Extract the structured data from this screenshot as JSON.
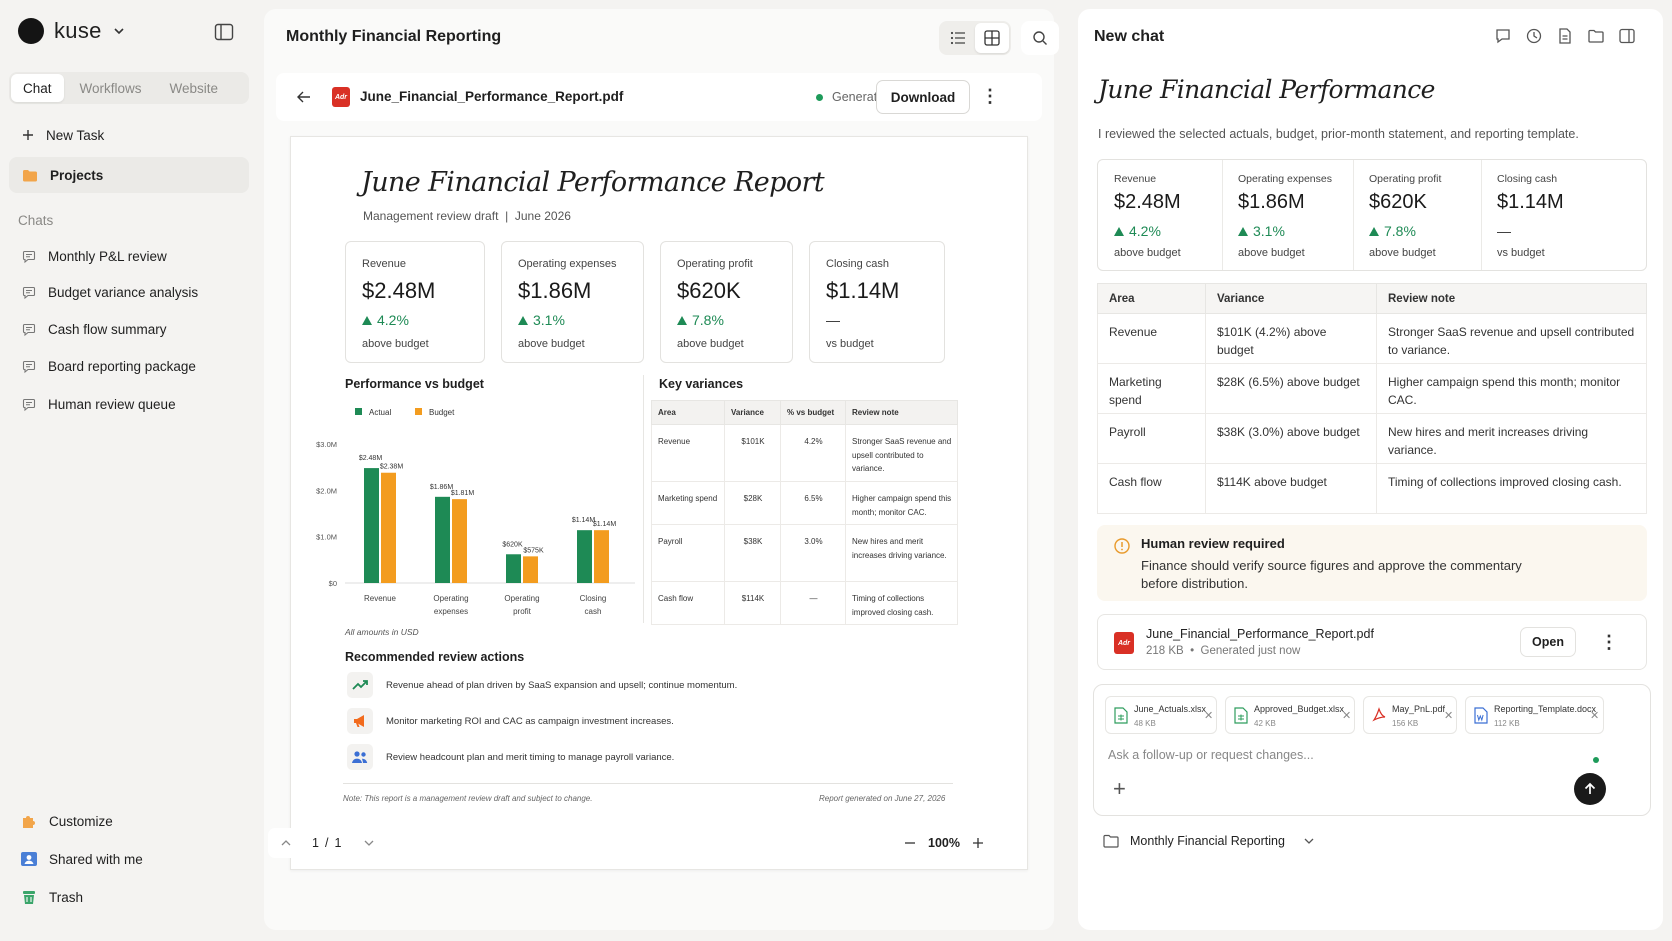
{
  "sidebar": {
    "brand": "kuse",
    "modes": [
      "Chat",
      "Workflows",
      "Website"
    ],
    "new_task": "New Task",
    "projects": "Projects",
    "chats_heading": "Chats",
    "chats": [
      "Monthly P&L review",
      "Budget variance analysis",
      "Cash flow summary",
      "Board reporting package",
      "Human review queue"
    ],
    "bottom": [
      "Customize",
      "Shared with me",
      "Trash"
    ]
  },
  "viewer": {
    "title": "Monthly Financial Reporting",
    "file_name": "June_Financial_Performance_Report.pdf",
    "status": "Generated",
    "download": "Download",
    "page_current": "1",
    "page_sep": "/",
    "page_total": "1",
    "zoom": "100%"
  },
  "report": {
    "title": "June Financial Performance Report",
    "subtitle": "Management review draft",
    "subtitle_sep": "|",
    "period": "June 2026",
    "kpis": [
      {
        "label": "Revenue",
        "value": "$2.48M",
        "change": "4.2%",
        "note": "above budget",
        "trend": "up"
      },
      {
        "label": "Operating expenses",
        "value": "$1.86M",
        "change": "3.1%",
        "note": "above budget",
        "trend": "up"
      },
      {
        "label": "Operating profit",
        "value": "$620K",
        "change": "7.8%",
        "note": "above budget",
        "trend": "up"
      },
      {
        "label": "Closing cash",
        "value": "$1.14M",
        "change": "—",
        "note": "vs budget",
        "trend": "flat"
      }
    ],
    "perf_heading": "Performance vs budget",
    "usd_note": "All amounts in USD",
    "variances_heading": "Key variances",
    "variance_table": {
      "headers": [
        "Area",
        "Variance",
        "% vs budget",
        "Review note"
      ],
      "rows": [
        [
          "Revenue",
          "$101K",
          "4.2%",
          "Stronger SaaS revenue and upsell contributed to variance."
        ],
        [
          "Marketing spend",
          "$28K",
          "6.5%",
          "Higher campaign spend this month; monitor CAC."
        ],
        [
          "Payroll",
          "$38K",
          "3.0%",
          "New hires and merit increases driving variance."
        ],
        [
          "Cash flow",
          "$114K",
          "—",
          "Timing of collections improved closing cash."
        ]
      ]
    },
    "actions_heading": "Recommended review actions",
    "actions": [
      {
        "icon": "trend-up-icon",
        "text": "Revenue ahead of plan driven by SaaS expansion and upsell; continue momentum."
      },
      {
        "icon": "megaphone-icon",
        "text": "Monitor marketing ROI and CAC as campaign investment increases."
      },
      {
        "icon": "people-icon",
        "text": "Review headcount plan and merit timing to manage payroll variance."
      }
    ],
    "footer_note": "Note: This report is a management review draft and subject to change.",
    "footer_generated": "Report generated on June 27, 2026"
  },
  "chart_data": {
    "type": "bar",
    "title": "Performance vs budget",
    "categories": [
      "Revenue",
      "Operating expenses",
      "Operating profit",
      "Closing cash"
    ],
    "category_lines": [
      [
        "Revenue"
      ],
      [
        "Operating",
        "expenses"
      ],
      [
        "Operating",
        "profit"
      ],
      [
        "Closing",
        "cash"
      ]
    ],
    "series": [
      {
        "name": "Actual",
        "values": [
          2.48,
          1.86,
          0.62,
          1.14
        ],
        "labels": [
          "$2.48M",
          "$1.86M",
          "$620K",
          "$1.14M"
        ],
        "color": "#1e8a55"
      },
      {
        "name": "Budget",
        "values": [
          2.38,
          1.81,
          0.575,
          1.14
        ],
        "labels": [
          "$2.38M",
          "$1.81M",
          "$575K",
          "$1.14M"
        ],
        "color": "#f39c1f"
      }
    ],
    "yticks": [
      "$0",
      "$1.0M",
      "$2.0M",
      "$3.0M"
    ],
    "ylim": [
      0,
      3.0
    ],
    "legend": "top-left",
    "grid": false
  },
  "chat": {
    "title": "New chat",
    "heading": "June Financial Performance",
    "intro": "I reviewed the selected actuals, budget, prior-month statement, and reporting template.",
    "table": {
      "headers": [
        "Area",
        "Variance",
        "Review note"
      ],
      "rows": [
        [
          "Revenue",
          "$101K (4.2%) above budget",
          "Stronger SaaS revenue and upsell contributed to variance."
        ],
        [
          "Marketing spend",
          "$28K (6.5%) above budget",
          "Higher campaign spend this month; monitor CAC."
        ],
        [
          "Payroll",
          "$38K (3.0%) above budget",
          "New hires and merit increases driving variance."
        ],
        [
          "Cash flow",
          "$114K above budget",
          "Timing of collections improved closing cash."
        ]
      ]
    },
    "review_title": "Human review required",
    "review_body": "Finance should verify source figures and approve the commentary before distribution.",
    "file_name": "June_Financial_Performance_Report.pdf",
    "file_size": "218 KB",
    "file_meta_sep": "•",
    "file_time": "Generated just now",
    "open": "Open",
    "attachments": [
      {
        "name": "June_Actuals.xlsx",
        "size": "48 KB",
        "kind": "sheet"
      },
      {
        "name": "Approved_Budget.xlsx",
        "size": "42 KB",
        "kind": "sheet"
      },
      {
        "name": "May_PnL.pdf",
        "size": "156 KB",
        "kind": "pdf"
      },
      {
        "name": "Reporting_Template.docx",
        "size": "112 KB",
        "kind": "doc"
      }
    ],
    "placeholder": "Ask a follow-up or request changes...",
    "project": "Monthly Financial Reporting"
  },
  "colors": {
    "accent_green": "#1e8a55",
    "budget_orange": "#f39c1f",
    "pdf_red": "#d93025"
  }
}
